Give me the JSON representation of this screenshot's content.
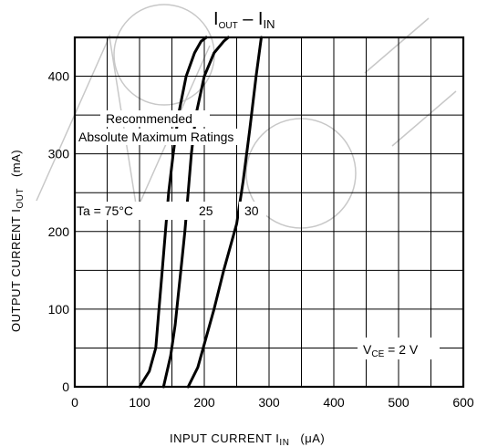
{
  "chart_data": {
    "type": "line",
    "title": {
      "main": "I",
      "main_sub": "OUT",
      "sep": " – ",
      "second": "I",
      "second_sub": "IN"
    },
    "xlabel": {
      "text": "INPUT CURRENT  I",
      "sub": "IN",
      "unit": "(μA)"
    },
    "ylabel": {
      "text": "OUTPUT CURRENT  I",
      "sub": "OUT",
      "unit": "(mA)"
    },
    "xlim": [
      0,
      600
    ],
    "ylim": [
      0,
      450
    ],
    "x_ticks": [
      0,
      100,
      200,
      300,
      400,
      500,
      600
    ],
    "y_ticks": [
      0,
      100,
      200,
      300,
      400
    ],
    "x_grid": [
      0,
      50,
      100,
      150,
      200,
      250,
      300,
      350,
      400,
      450,
      500,
      550,
      600
    ],
    "y_grid": [
      0,
      50,
      100,
      150,
      200,
      250,
      300,
      350,
      400,
      450
    ],
    "grid": true,
    "series": [
      {
        "name": "Ta = 75°C",
        "x": [
          100,
          115,
          125,
          130,
          135,
          140,
          145,
          152,
          160,
          172,
          185,
          195,
          203
        ],
        "y": [
          0,
          20,
          50,
          100,
          150,
          200,
          250,
          300,
          350,
          400,
          430,
          445,
          450
        ]
      },
      {
        "name": "25",
        "x": [
          137,
          148,
          155,
          160,
          165,
          170,
          175,
          180,
          187,
          200,
          215,
          230,
          237
        ],
        "y": [
          0,
          40,
          80,
          120,
          160,
          200,
          250,
          300,
          350,
          400,
          430,
          445,
          450
        ]
      },
      {
        "name": "30",
        "x": [
          175,
          190,
          200,
          215,
          230,
          250,
          260,
          270,
          280,
          288
        ],
        "y": [
          0,
          25,
          55,
          100,
          150,
          210,
          265,
          330,
          400,
          450
        ]
      }
    ],
    "annotations": {
      "recommended": "Recommended",
      "amr": "Absolute Maximum Ratings",
      "ta": "Ta = 75°C",
      "t25": "25",
      "t30": "30",
      "vce_main": "V",
      "vce_sub": "CE",
      "vce_rest": " = 2 V"
    }
  }
}
